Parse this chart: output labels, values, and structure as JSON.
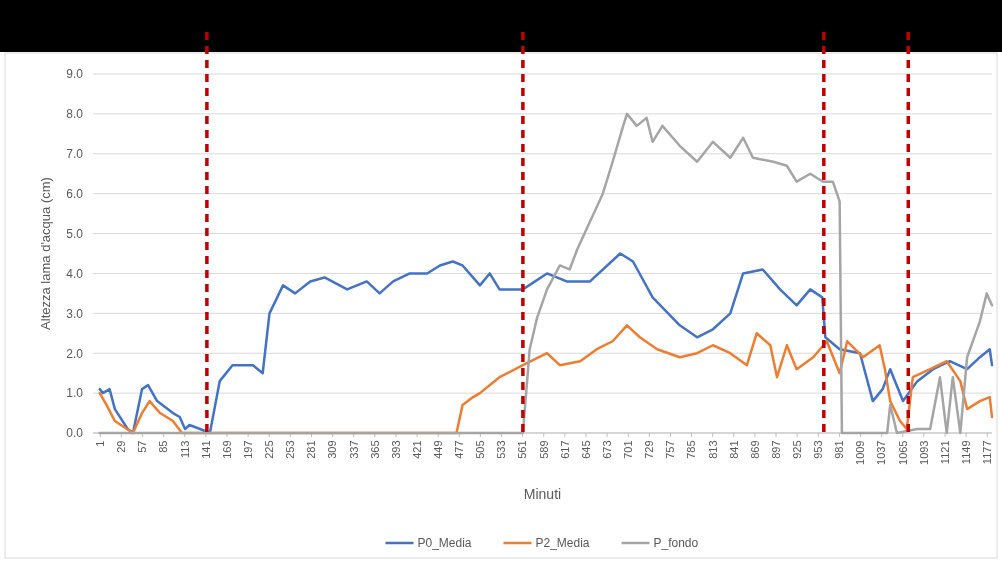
{
  "chart_data": {
    "type": "line",
    "xlabel": "Minuti",
    "ylabel": "Altezza lama d'acqua (cm)",
    "xlim": [
      -8,
      1184
    ],
    "ylim": [
      0,
      9
    ],
    "xticks": [
      1,
      29,
      57,
      85,
      113,
      141,
      169,
      197,
      225,
      253,
      281,
      309,
      337,
      365,
      393,
      421,
      449,
      477,
      505,
      533,
      561,
      589,
      617,
      645,
      673,
      701,
      729,
      757,
      785,
      813,
      841,
      869,
      897,
      925,
      953,
      981,
      1009,
      1037,
      1065,
      1093,
      1121,
      1149,
      1177
    ],
    "yticks": [
      {
        "value": 0,
        "label": "0.0"
      },
      {
        "value": 1,
        "label": "1.0"
      },
      {
        "value": 2,
        "label": "2.0"
      },
      {
        "value": 3,
        "label": "3.0"
      },
      {
        "value": 4,
        "label": "4.0"
      },
      {
        "value": 5,
        "label": "5.0"
      },
      {
        "value": 6,
        "label": "6.0"
      },
      {
        "value": 7,
        "label": "7.0"
      },
      {
        "value": 8,
        "label": "8.0"
      },
      {
        "value": 9,
        "label": "9.0"
      }
    ],
    "grid": "y",
    "legend": "bottom",
    "marker": "none",
    "line_style": "solid",
    "series": [
      {
        "name": "P0_Media",
        "color": "#4472c4",
        "x": [
          1,
          5,
          14,
          21,
          38,
          45,
          57,
          65,
          77,
          98,
          107,
          114,
          120,
          134,
          147,
          160,
          177,
          204,
          217,
          226,
          244,
          260,
          280,
          299,
          329,
          355,
          372,
          390,
          412,
          435,
          452,
          469,
          482,
          505,
          518,
          531,
          562,
          594,
          620,
          651,
          691,
          708,
          734,
          770,
          793,
          814,
          837,
          854,
          880,
          903,
          925,
          943,
          959,
          963,
          982,
          1009,
          1026,
          1039,
          1049,
          1066,
          1085,
          1106,
          1128,
          1151,
          1168,
          1181,
          1184
        ],
        "values": [
          1.1,
          1.0,
          1.1,
          0.6,
          0.1,
          0,
          1.1,
          1.2,
          0.8,
          0.5,
          0.4,
          0.1,
          0.2,
          0.1,
          0,
          1.3,
          1.7,
          1.7,
          1.5,
          3.0,
          3.7,
          3.5,
          3.8,
          3.9,
          3.6,
          3.8,
          3.5,
          3.8,
          4.0,
          4.0,
          4.2,
          4.3,
          4.2,
          3.7,
          4.0,
          3.6,
          3.6,
          4.0,
          3.8,
          3.8,
          4.5,
          4.3,
          3.4,
          2.7,
          2.4,
          2.6,
          3.0,
          4.0,
          4.1,
          3.6,
          3.2,
          3.6,
          3.4,
          2.4,
          2.1,
          2.0,
          0.8,
          1.1,
          1.6,
          0.8,
          1.3,
          1.6,
          1.8,
          1.6,
          1.9,
          2.1,
          1.7
        ]
      },
      {
        "name": "P2_Media",
        "color": "#ed7d31",
        "x": [
          1,
          10,
          21,
          37,
          45,
          57,
          67,
          81,
          98,
          110,
          474,
          482,
          496,
          505,
          531,
          562,
          594,
          611,
          638,
          660,
          681,
          700,
          717,
          740,
          770,
          793,
          814,
          837,
          859,
          872,
          890,
          899,
          912,
          925,
          947,
          965,
          982,
          992,
          1013,
          1035,
          1042,
          1049,
          1062,
          1071,
          1079,
          1102,
          1124,
          1142,
          1151,
          1168,
          1181,
          1184
        ],
        "values": [
          1.0,
          0.7,
          0.3,
          0.1,
          0,
          0.5,
          0.8,
          0.5,
          0.3,
          0,
          0,
          0.7,
          0.9,
          1.0,
          1.4,
          1.7,
          2.0,
          1.7,
          1.8,
          2.1,
          2.3,
          2.7,
          2.4,
          2.1,
          1.9,
          2.0,
          2.2,
          2.0,
          1.7,
          2.5,
          2.2,
          1.4,
          2.2,
          1.6,
          1.9,
          2.3,
          1.5,
          2.3,
          1.9,
          2.2,
          1.6,
          0.8,
          0.3,
          0.1,
          1.4,
          1.6,
          1.8,
          1.3,
          0.6,
          0.8,
          0.9,
          0.4
        ]
      },
      {
        "name": "P_fondo",
        "color": "#a5a5a5",
        "x": [
          1,
          562,
          571,
          581,
          594,
          611,
          624,
          634,
          651,
          668,
          681,
          695,
          700,
          713,
          726,
          734,
          747,
          770,
          793,
          814,
          837,
          854,
          867,
          894,
          912,
          925,
          943,
          960,
          973,
          982,
          985,
          1045,
          1049,
          1058,
          1085,
          1102,
          1115,
          1124,
          1132,
          1142,
          1151,
          1168,
          1177,
          1184
        ],
        "values": [
          0,
          0,
          2.1,
          2.9,
          3.6,
          4.2,
          4.1,
          4.6,
          5.3,
          6.0,
          6.8,
          7.7,
          8.0,
          7.7,
          7.9,
          7.3,
          7.7,
          7.2,
          6.8,
          7.3,
          6.9,
          7.4,
          6.9,
          6.8,
          6.7,
          6.3,
          6.5,
          6.3,
          6.3,
          5.8,
          0,
          0,
          0.7,
          0,
          0.1,
          0.1,
          1.4,
          0,
          1.4,
          0,
          1.9,
          2.8,
          3.5,
          3.2
        ]
      }
    ],
    "ref_lines": [
      {
        "axis": "x",
        "value": 143,
        "color": "#c00000",
        "line_style": "dashed"
      },
      {
        "axis": "x",
        "value": 562,
        "color": "#c00000",
        "line_style": "dashed"
      },
      {
        "axis": "x",
        "value": 961,
        "color": "#c00000",
        "line_style": "dashed"
      },
      {
        "axis": "x",
        "value": 1073,
        "color": "#c00000",
        "line_style": "dashed"
      }
    ]
  }
}
